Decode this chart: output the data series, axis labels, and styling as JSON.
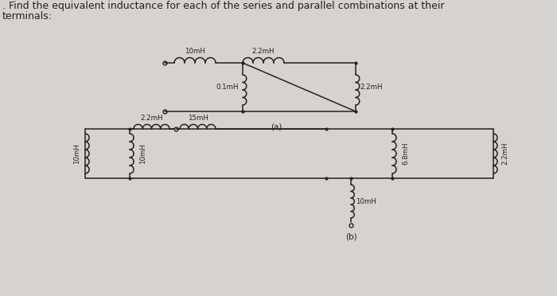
{
  "title_line1": ". Find the equivalent inductance for each of the series and parallel combinations at their",
  "title_line2": "terminals:",
  "bg_color": "#d6d2cd",
  "label_a": "(a)",
  "label_b": "(b)",
  "ca_L10": "10mH",
  "ca_L22t": "2.2mH",
  "ca_L01": "0.1mH",
  "ca_L22r": "2.2mH",
  "cb_L22": "2.2mH",
  "cb_L15": "15mH",
  "cb_L10L": "10mH",
  "cb_L10M": "10mH",
  "cb_L68": "6.8mH",
  "cb_L22R": "2.2mH",
  "cb_L10B": "10mH",
  "font_title": 9.0,
  "font_label": 6.2,
  "font_sub": 7.5
}
